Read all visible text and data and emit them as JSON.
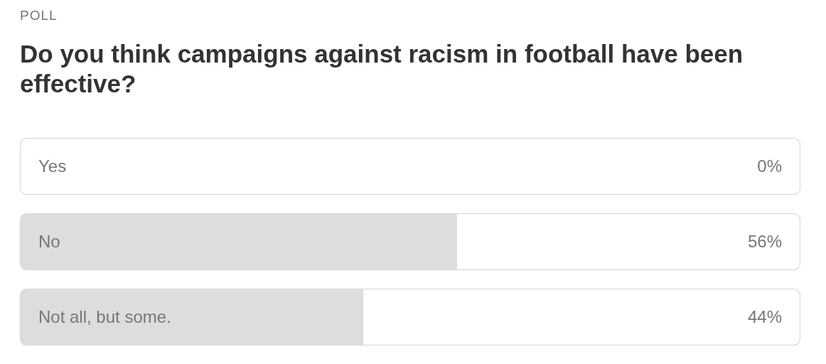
{
  "chart_data": {
    "type": "bar",
    "orientation": "horizontal",
    "subtitle": "POLL",
    "title": "Do you think campaigns against racism in football have been effective?",
    "categories": [
      "Yes",
      "No",
      "Not all, but some."
    ],
    "values": [
      0,
      56,
      44
    ],
    "value_labels": [
      "0%",
      "56%",
      "44%"
    ],
    "color": "#dddddd",
    "xlim": [
      0,
      100
    ]
  }
}
